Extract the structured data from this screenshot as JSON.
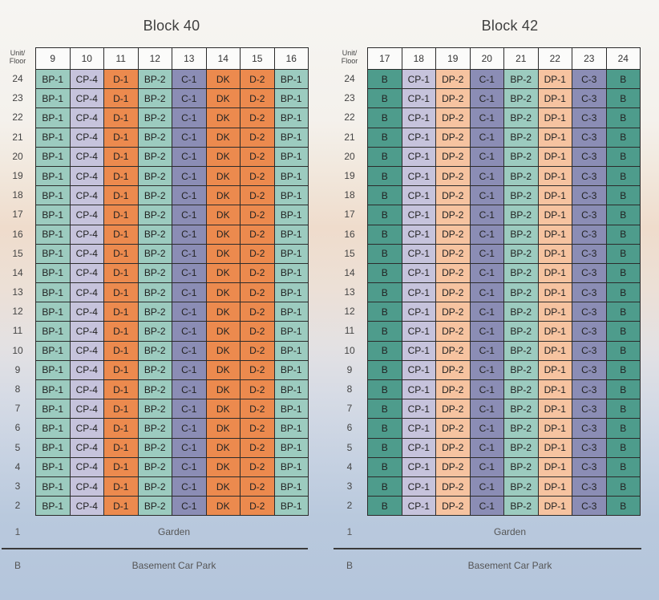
{
  "floor_header": "Unit/\nFloor",
  "floors": [
    "24",
    "23",
    "22",
    "21",
    "20",
    "19",
    "18",
    "17",
    "16",
    "15",
    "14",
    "13",
    "12",
    "11",
    "10",
    "9",
    "8",
    "7",
    "6",
    "5",
    "4",
    "3",
    "2"
  ],
  "ground": {
    "floor": "1",
    "label": "Garden"
  },
  "basement": {
    "floor": "B",
    "label": "Basement Car Park"
  },
  "type_colors": {
    "BP-1": "#9ccbbf",
    "BP-2": "#9ccbbf",
    "CP-4": "#c6c3dc",
    "CP-1": "#c6c3dc",
    "D-1": "#ec8a4e",
    "D-2": "#ec8a4e",
    "DK": "#ec8a4e",
    "C-1": "#8b8db5",
    "C-3": "#8b8db5",
    "B": "#4e9c8c",
    "DP-1": "#f6c3a0",
    "DP-2": "#f6c3a0"
  },
  "blocks": [
    {
      "title": "Block 40",
      "units": [
        "9",
        "10",
        "11",
        "12",
        "13",
        "14",
        "15",
        "16"
      ],
      "types": [
        "BP-1",
        "CP-4",
        "D-1",
        "BP-2",
        "C-1",
        "DK",
        "D-2",
        "BP-1"
      ]
    },
    {
      "title": "Block 42",
      "units": [
        "17",
        "18",
        "19",
        "20",
        "21",
        "22",
        "23",
        "24"
      ],
      "types": [
        "B",
        "CP-1",
        "DP-2",
        "C-1",
        "BP-2",
        "DP-1",
        "C-3",
        "B"
      ]
    }
  ]
}
